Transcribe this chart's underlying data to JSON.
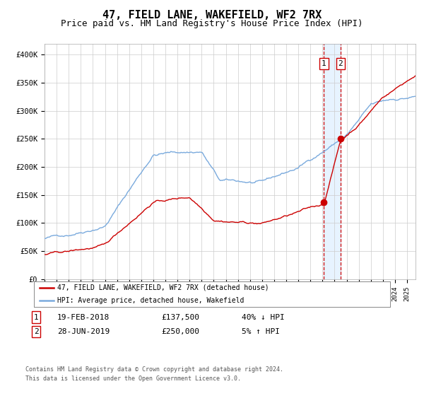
{
  "title": "47, FIELD LANE, WAKEFIELD, WF2 7RX",
  "subtitle": "Price paid vs. HM Land Registry's House Price Index (HPI)",
  "title_fontsize": 11,
  "subtitle_fontsize": 9,
  "ylim": [
    0,
    420000
  ],
  "xlim_start": 1995.0,
  "xlim_end": 2025.7,
  "yticks": [
    0,
    50000,
    100000,
    150000,
    200000,
    250000,
    300000,
    350000,
    400000
  ],
  "ytick_labels": [
    "£0",
    "£50K",
    "£100K",
    "£150K",
    "£200K",
    "£250K",
    "£300K",
    "£350K",
    "£400K"
  ],
  "hpi_color": "#7aaadd",
  "price_color": "#cc0000",
  "marker_color": "#cc0000",
  "vline_color": "#cc0000",
  "vshade_color": "#ddeeff",
  "legend_label_price": "47, FIELD LANE, WAKEFIELD, WF2 7RX (detached house)",
  "legend_label_hpi": "HPI: Average price, detached house, Wakefield",
  "transaction1_date": "19-FEB-2018",
  "transaction1_price": "£137,500",
  "transaction1_hpi": "40% ↓ HPI",
  "transaction1_year": 2018.12,
  "transaction1_value": 137500,
  "transaction2_date": "28-JUN-2019",
  "transaction2_price": "£250,000",
  "transaction2_hpi": "5% ↑ HPI",
  "transaction2_year": 2019.49,
  "transaction2_value": 250000,
  "footnote1": "Contains HM Land Registry data © Crown copyright and database right 2024.",
  "footnote2": "This data is licensed under the Open Government Licence v3.0.",
  "background_color": "#ffffff",
  "grid_color": "#cccccc"
}
